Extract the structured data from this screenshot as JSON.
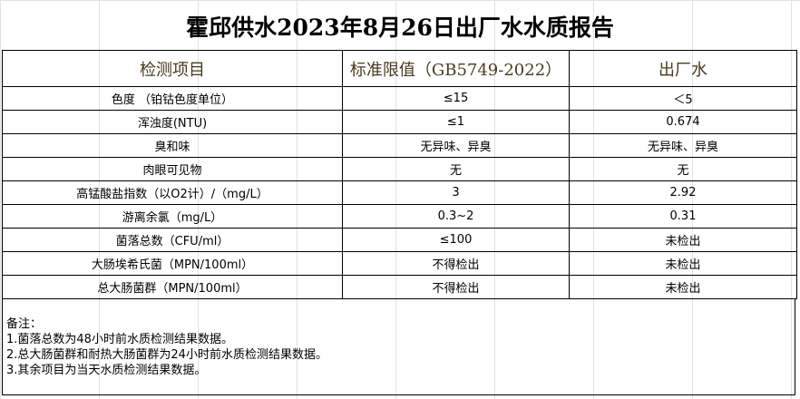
{
  "title": "霍邱供水2023年8月26日出厂水水质报告",
  "headers": [
    "检测项目",
    "标准限值（GB5749-2022）",
    "出厂水"
  ],
  "rows": [
    [
      "色度 （铂钴色度单位）",
      "≤15",
      "＜5"
    ],
    [
      "浑浊度(NTU)",
      "≤1",
      "0.674"
    ],
    [
      "臭和味",
      "无异味、异臭",
      "无异味、异臭"
    ],
    [
      "肉眼可见物",
      "无",
      "无"
    ],
    [
      "高锰酸盐指数（以O2计）/（mg/L）",
      "3",
      "2.92"
    ],
    [
      "游离余氯（mg/L）",
      "0.3~2",
      "0.31"
    ],
    [
      "菌落总数（CFU/ml）",
      "≤100",
      "未检出"
    ],
    [
      "大肠埃希氏菌（MPN/100ml）",
      "不得检出",
      "未检出"
    ],
    [
      "总大肠菌群（MPN/100ml）",
      "不得检出",
      "未检出"
    ]
  ],
  "notes": {
    "heading": "备注：",
    "items": [
      "1.菌落总数为48小时前水质检测结果数据。",
      "2.总大肠菌群和耐热大肠菌群为24小时前水质检测结果数据。",
      "3.其余项目为当天水质检测结果数据。"
    ]
  }
}
